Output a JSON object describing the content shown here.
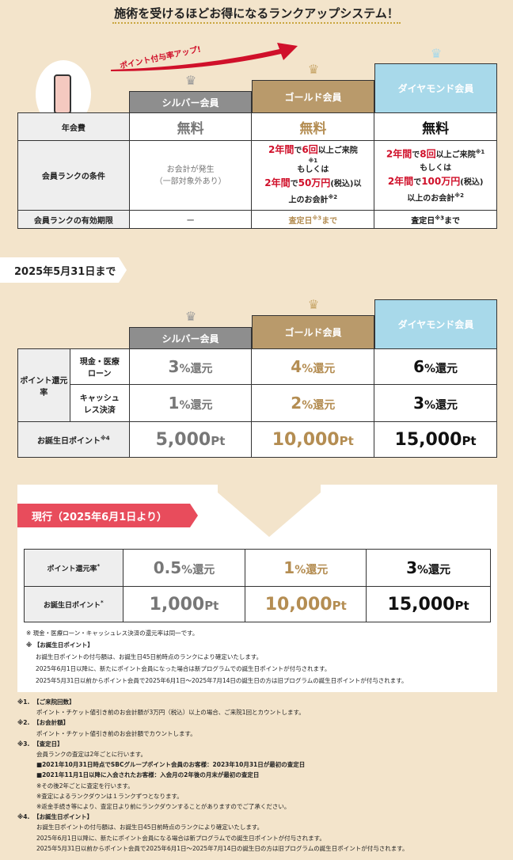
{
  "title": "施術を受けるほどお得になるランクアップシステム！",
  "arrow_label": "ポイント付与率アップ!",
  "ranks": [
    "シルバー会員",
    "ゴールド会員",
    "ダイヤモンド会員"
  ],
  "colors": {
    "silver": "#8e8e8e",
    "gold": "#b99a6b",
    "diamond": "#a8d9ea",
    "accent_red": "#d0102a",
    "tab_pink": "#e84c5c"
  },
  "table1": {
    "rows": [
      {
        "label": "年会費",
        "silver": "無料",
        "gold": "無料",
        "diamond": "無料"
      },
      {
        "label": "会員ランクの条件",
        "silver": [
          "お会計が発生",
          "（一部対象外あり）"
        ],
        "gold": {
          "a1": "2年間",
          "a2": "で",
          "a3": "6回",
          "a4": "以上ご来院",
          "n1": "※1",
          "or": "もしくは",
          "b1": "2年間",
          "b2": "で",
          "b3": "50万円",
          "b4": "(税込)以",
          "b5": "上のお会計",
          "n2": "※2"
        },
        "diamond": {
          "a1": "2年間",
          "a2": "で",
          "a3": "8回",
          "a4": "以上ご来院",
          "n1": "※1",
          "or": "もしくは",
          "b1": "2年間",
          "b2": "で",
          "b3": "100万円",
          "b4": "(税込)",
          "b5": "以上のお会計",
          "n2": "※2"
        }
      },
      {
        "label": "会員ランクの有効期限",
        "silver": "ー",
        "gold": "査定日",
        "diamond": "査定日",
        "note": "※3",
        "suffix": "まで"
      }
    ]
  },
  "old_label": "2025年5月31日まで",
  "table2": {
    "rate_label": "ポイント還元率",
    "cash_label": "現金・医療ローン",
    "cashless_label": "キャッシュレス決済",
    "birthday_label": "お誕生日ポイント",
    "birthday_note": "※4",
    "unit_rate": "%還元",
    "unit_pt": "Pt",
    "cash": [
      "3",
      "4",
      "6"
    ],
    "cashless": [
      "1",
      "2",
      "3"
    ],
    "birthday": [
      "5,000",
      "10,000",
      "15,000"
    ]
  },
  "new_label": "現行（2025年6月1日より）",
  "table3": {
    "rate_label": "ポイント還元率",
    "birthday_label": "お誕生日ポイント",
    "star": "*",
    "rate": [
      "0.5",
      "1",
      "3"
    ],
    "birthday": [
      "1,000",
      "10,000",
      "15,000"
    ]
  },
  "notes": [
    "※ 現金・医療ローン・キャッシュレス決済の還元率は同一です。",
    "※ 【お誕生日ポイント】",
    "お誕生日ポイントの付与額は、お誕生日45日前時点のランクにより確定いたします。",
    "2025年6月1日以降に、新たにポイント会員になった場合は新プログラムでの誕生日ポイントが付与されます。",
    "2025年5月31日以前からポイント会員で2025年6月1日～2025年7月14日の誕生日の方は旧プログラムの誕生日ポイントが付与されます。"
  ],
  "footnotes": [
    {
      "num": "※1.",
      "head": "【ご来院回数】",
      "lines": [
        "ポイント・チケット値引き前のお会計額が3万円（税込）以上の場合、ご来院1回とカウントします。"
      ]
    },
    {
      "num": "※2.",
      "head": "【お会計額】",
      "lines": [
        "ポイント・チケット値引き前のお会計額でカウントします。"
      ]
    },
    {
      "num": "※3.",
      "head": "【査定日】",
      "lines": [
        "会員ランクの査定は2年ごとに行います。",
        "■2021年10月31日時点でSBCグループポイント会員のお客様：2023年10月31日が最初の査定日",
        "■2021年11月1日以降に入会されたお客様：入会月の2年後の月末が最初の査定日",
        "※その後2年ごとに査定を行います。",
        "※査定によるランクダウンは１ランクずつとなります。",
        "※返金手続き等により、査定日より前にランクダウンすることがありますのでご了承ください。"
      ]
    },
    {
      "num": "※4.",
      "head": "【お誕生日ポイント】",
      "lines": [
        "お誕生日ポイントの付与額は、お誕生日45日前時点のランクにより確定いたします。",
        "2025年6月1日以降に、新たにポイント会員になる場合は新プログラムでの誕生日ポイントが付与されます。",
        "2025年5月31日以前からポイント会員で2025年6月1日～2025年7月14日の誕生日の方は旧プログラムの誕生日ポイントが付与されます。"
      ]
    }
  ]
}
